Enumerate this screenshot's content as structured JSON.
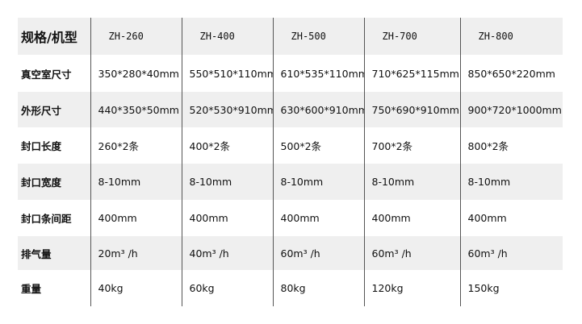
{
  "table": {
    "header": [
      "规格/机型",
      "ZH-260",
      "ZH-400",
      "ZH-500",
      "ZH-700",
      "ZH-800"
    ],
    "rows": [
      [
        "真空室尺寸",
        "350*280*40mm",
        "550*510*110mm",
        "610*535*110mm",
        "710*625*115mm",
        "850*650*220mm"
      ],
      [
        "外形尺寸",
        "440*350*50mm",
        "520*530*910mm",
        "630*600*910mm",
        "750*690*910mm",
        "900*720*1000mm"
      ],
      [
        "封口长度",
        "260*2条",
        "400*2条",
        "500*2条",
        "700*2条",
        "800*2条"
      ],
      [
        "封口宽度",
        "8-10mm",
        "8-10mm",
        "8-10mm",
        "8-10mm",
        "8-10mm"
      ],
      [
        "封口条间距",
        "400mm",
        "400mm",
        "400mm",
        "400mm",
        "400mm"
      ],
      [
        "排气量",
        "20m³ /h",
        "40m³ /h",
        "60m³ /h",
        "60m³ /h",
        "60m³ /h"
      ],
      [
        "重量",
        "40kg",
        "60kg",
        "80kg",
        "120kg",
        "150kg"
      ]
    ]
  }
}
